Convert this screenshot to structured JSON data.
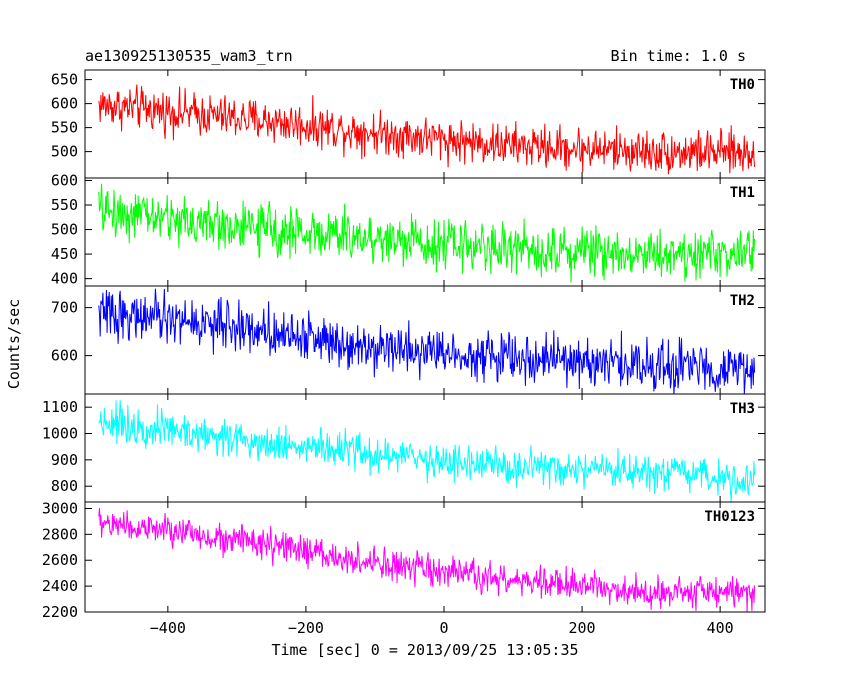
{
  "title_left": "ae130925130535_wam3_trn",
  "title_right": "Bin time: 1.0 s",
  "ylabel": "Counts/sec",
  "xlabel": "Time [sec] 0 = 2013/09/25 13:05:35",
  "chart_data": {
    "type": "line",
    "x_range": [
      -520,
      465
    ],
    "x_ticks": [
      -400,
      -200,
      0,
      200,
      400
    ],
    "x_data_range": [
      -500,
      450
    ],
    "bin_time_s": 1.0,
    "series": [
      {
        "name": "TH0",
        "color": "#ff0000",
        "ylim": [
          445,
          670
        ],
        "yticks": [
          500,
          550,
          600,
          650
        ],
        "trend": [
          [
            -500,
            598
          ],
          [
            -300,
            570
          ],
          [
            -100,
            540
          ],
          [
            100,
            512
          ],
          [
            300,
            500
          ],
          [
            450,
            497
          ]
        ],
        "noise": 22
      },
      {
        "name": "TH1",
        "color": "#00ff00",
        "ylim": [
          385,
          605
        ],
        "yticks": [
          400,
          450,
          500,
          550,
          600
        ],
        "trend": [
          [
            -500,
            540
          ],
          [
            -300,
            505
          ],
          [
            -100,
            482
          ],
          [
            100,
            462
          ],
          [
            300,
            452
          ],
          [
            450,
            450
          ]
        ],
        "noise": 25
      },
      {
        "name": "TH2",
        "color": "#0000ff",
        "ylim": [
          520,
          745
        ],
        "yticks": [
          600,
          700
        ],
        "trend": [
          [
            -500,
            690
          ],
          [
            -300,
            660
          ],
          [
            -100,
            620
          ],
          [
            100,
            595
          ],
          [
            300,
            580
          ],
          [
            450,
            570
          ]
        ],
        "noise": 25
      },
      {
        "name": "TH3",
        "color": "#00ffff",
        "ylim": [
          740,
          1150
        ],
        "yticks": [
          800,
          900,
          1000,
          1100
        ],
        "trend": [
          [
            -500,
            1050
          ],
          [
            -300,
            980
          ],
          [
            -100,
            920
          ],
          [
            100,
            870
          ],
          [
            300,
            845
          ],
          [
            450,
            830
          ]
        ],
        "noise": 35
      },
      {
        "name": "TH0123",
        "color": "#ff00ff",
        "ylim": [
          2200,
          3050
        ],
        "yticks": [
          2200,
          2400,
          2600,
          2800,
          3000
        ],
        "trend": [
          [
            -500,
            2890
          ],
          [
            -300,
            2760
          ],
          [
            -100,
            2570
          ],
          [
            100,
            2440
          ],
          [
            300,
            2360
          ],
          [
            450,
            2350
          ]
        ],
        "noise": 60
      }
    ]
  }
}
